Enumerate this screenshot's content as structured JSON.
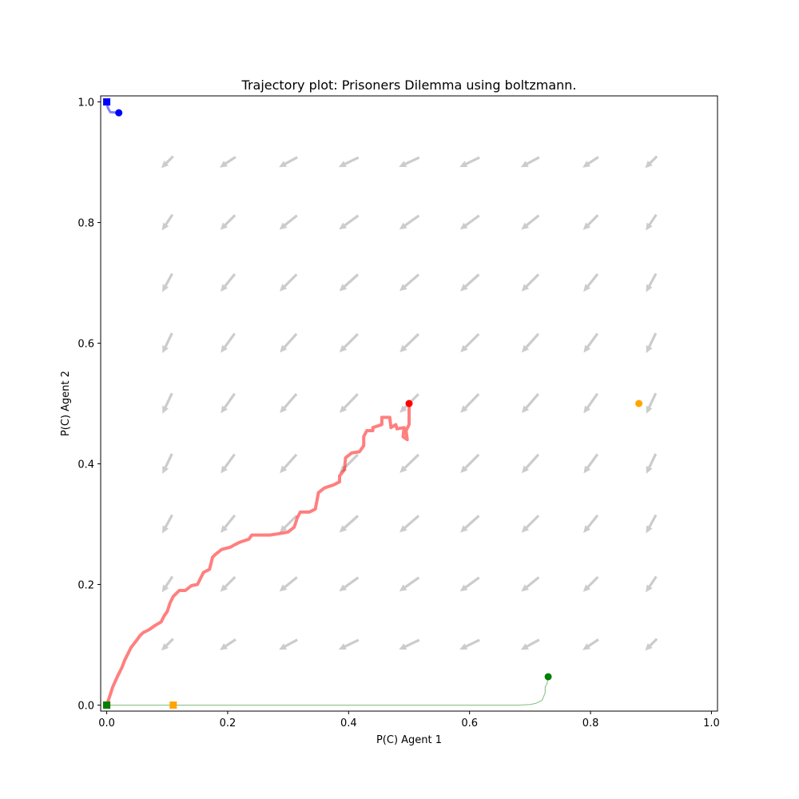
{
  "chart_data": {
    "type": "scatter",
    "title": "Trajectory plot: Prisoners Dilemma using boltzmann.",
    "xlabel": "P(C) Agent 1",
    "ylabel": "P(C) Agent 2",
    "xlim": [
      -0.01,
      1.01
    ],
    "ylim": [
      -0.01,
      1.01
    ],
    "x_ticks": [
      "0.0",
      "0.2",
      "0.4",
      "0.6",
      "0.8",
      "1.0"
    ],
    "y_ticks": [
      "0.0",
      "0.2",
      "0.4",
      "0.6",
      "0.8",
      "1.0"
    ],
    "grid": false,
    "legend": null,
    "vector_field": {
      "color": "#cccccc",
      "x": [
        0.1,
        0.2,
        0.3,
        0.4,
        0.5,
        0.6,
        0.7,
        0.8,
        0.9
      ],
      "y": [
        0.1,
        0.2,
        0.3,
        0.4,
        0.5,
        0.6,
        0.7,
        0.8,
        0.9
      ],
      "direction": "toward (0, 0)"
    },
    "trajectories": [
      {
        "color": "#0000ff",
        "width": 3,
        "start": [
          0.02,
          0.982
        ],
        "end": [
          0.0,
          1.0
        ],
        "path": [
          [
            0.02,
            0.982
          ],
          [
            0.006,
            0.983
          ],
          [
            0.002,
            0.99
          ],
          [
            0.0,
            1.0
          ]
        ]
      },
      {
        "color": "#ff0000",
        "width": 4,
        "start": [
          0.5,
          0.5
        ],
        "end": [
          0.0,
          0.0
        ],
        "path": [
          [
            0.5,
            0.5
          ],
          [
            0.5,
            0.465
          ],
          [
            0.495,
            0.455
          ],
          [
            0.497,
            0.44
          ],
          [
            0.49,
            0.445
          ],
          [
            0.492,
            0.46
          ],
          [
            0.48,
            0.458
          ],
          [
            0.478,
            0.465
          ],
          [
            0.47,
            0.46
          ],
          [
            0.468,
            0.477
          ],
          [
            0.455,
            0.477
          ],
          [
            0.455,
            0.465
          ],
          [
            0.44,
            0.46
          ],
          [
            0.44,
            0.455
          ],
          [
            0.43,
            0.455
          ],
          [
            0.425,
            0.445
          ],
          [
            0.425,
            0.43
          ],
          [
            0.418,
            0.42
          ],
          [
            0.405,
            0.418
          ],
          [
            0.395,
            0.41
          ],
          [
            0.393,
            0.39
          ],
          [
            0.385,
            0.38
          ],
          [
            0.385,
            0.37
          ],
          [
            0.375,
            0.365
          ],
          [
            0.36,
            0.36
          ],
          [
            0.35,
            0.352
          ],
          [
            0.345,
            0.325
          ],
          [
            0.335,
            0.32
          ],
          [
            0.32,
            0.32
          ],
          [
            0.315,
            0.31
          ],
          [
            0.31,
            0.295
          ],
          [
            0.3,
            0.287
          ],
          [
            0.29,
            0.285
          ],
          [
            0.27,
            0.282
          ],
          [
            0.25,
            0.282
          ],
          [
            0.24,
            0.282
          ],
          [
            0.235,
            0.275
          ],
          [
            0.22,
            0.27
          ],
          [
            0.21,
            0.265
          ],
          [
            0.205,
            0.262
          ],
          [
            0.19,
            0.258
          ],
          [
            0.18,
            0.25
          ],
          [
            0.175,
            0.245
          ],
          [
            0.17,
            0.225
          ],
          [
            0.16,
            0.22
          ],
          [
            0.15,
            0.2
          ],
          [
            0.14,
            0.198
          ],
          [
            0.13,
            0.19
          ],
          [
            0.12,
            0.19
          ],
          [
            0.11,
            0.18
          ],
          [
            0.105,
            0.17
          ],
          [
            0.1,
            0.155
          ],
          [
            0.095,
            0.148
          ],
          [
            0.09,
            0.138
          ],
          [
            0.08,
            0.132
          ],
          [
            0.07,
            0.125
          ],
          [
            0.06,
            0.12
          ],
          [
            0.055,
            0.115
          ],
          [
            0.05,
            0.108
          ],
          [
            0.04,
            0.095
          ],
          [
            0.035,
            0.085
          ],
          [
            0.03,
            0.075
          ],
          [
            0.025,
            0.062
          ],
          [
            0.018,
            0.048
          ],
          [
            0.01,
            0.03
          ],
          [
            0.005,
            0.015
          ],
          [
            0.0,
            0.0
          ]
        ]
      },
      {
        "color": "#008000",
        "width": 1,
        "start": [
          0.73,
          0.047
        ],
        "end": [
          0.0,
          0.0
        ],
        "path": [
          [
            0.73,
            0.047
          ],
          [
            0.728,
            0.035
          ],
          [
            0.725,
            0.03
          ],
          [
            0.725,
            0.02
          ],
          [
            0.722,
            0.013
          ],
          [
            0.72,
            0.008
          ],
          [
            0.71,
            0.003
          ],
          [
            0.7,
            0.001
          ],
          [
            0.68,
            0.0
          ],
          [
            0.6,
            0.0
          ],
          [
            0.4,
            0.0
          ],
          [
            0.2,
            0.0
          ],
          [
            0.0,
            0.0
          ]
        ]
      },
      {
        "color": "#ffa500",
        "width": 1,
        "start": [
          0.88,
          0.5
        ],
        "end": [
          0.11,
          0.0
        ],
        "path": []
      }
    ]
  }
}
